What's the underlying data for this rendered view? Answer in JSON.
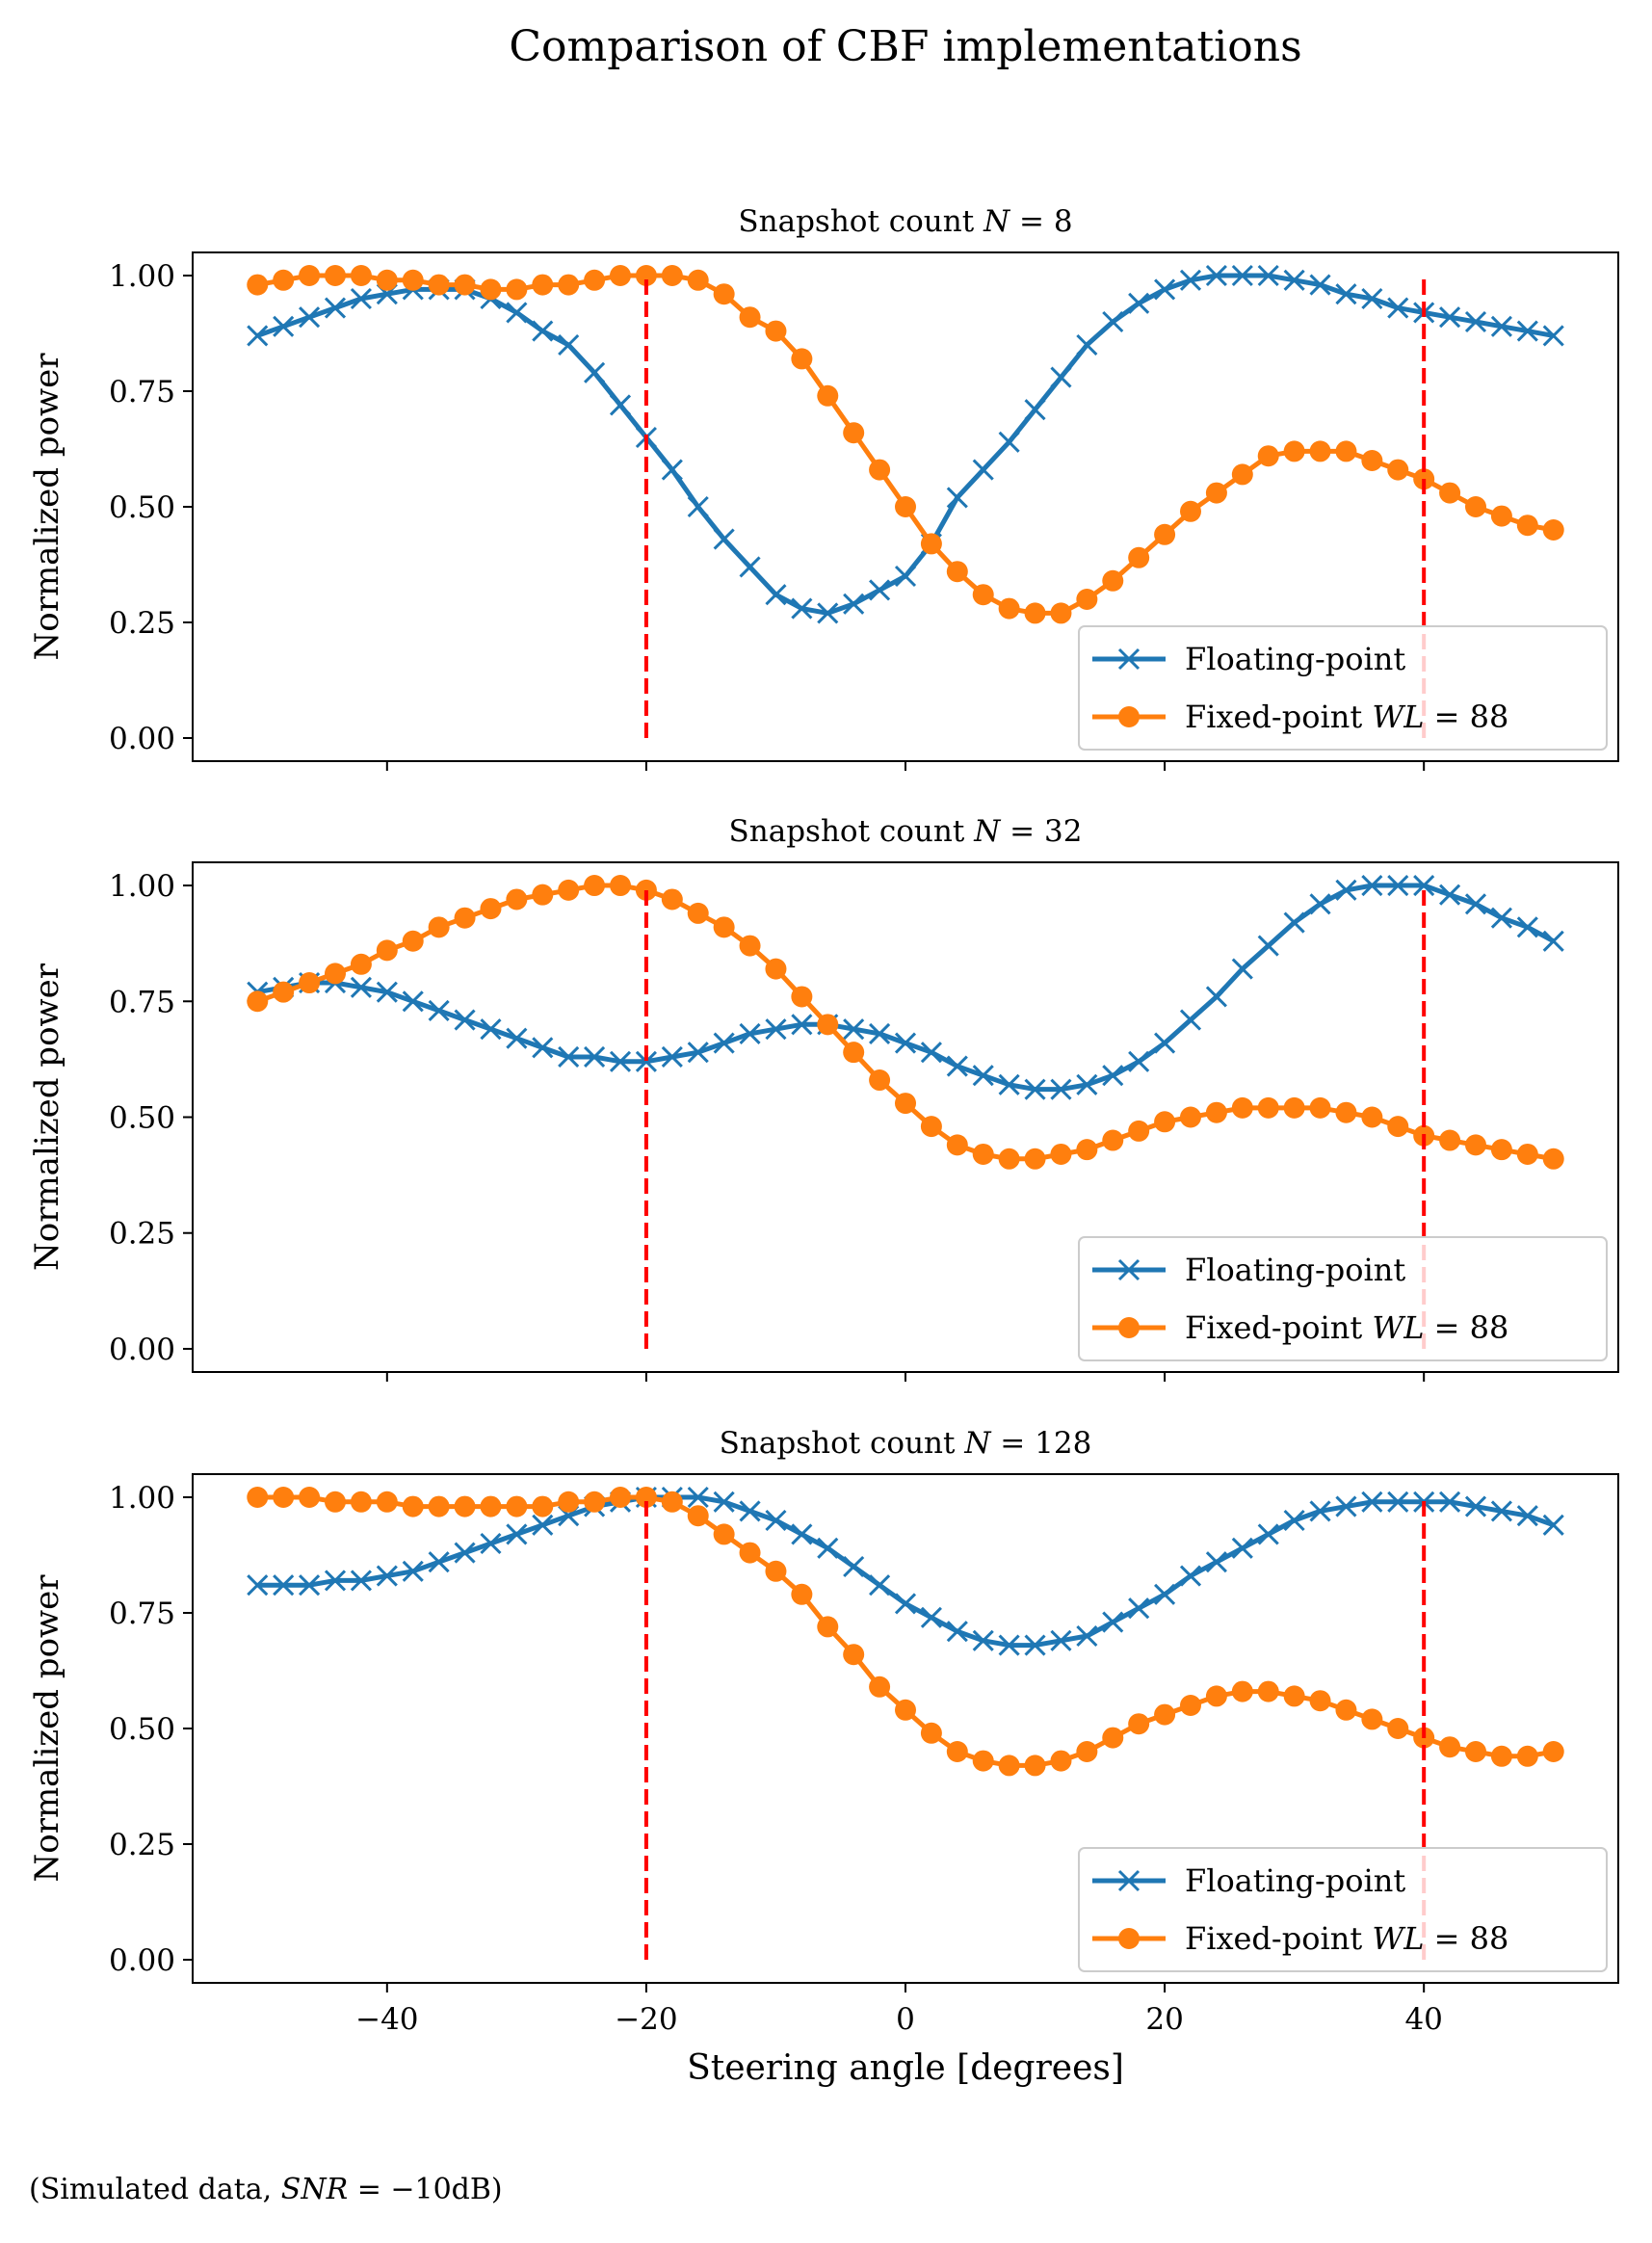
{
  "figure": {
    "title": "Comparison of CBF implementations",
    "footnote": "(Simulated data, SNR = −10dB)"
  },
  "chart_data": [
    {
      "type": "line",
      "title": "Snapshot count N = 8",
      "xlabel": "Steering angle [degrees]",
      "ylabel": "Normalized power",
      "xlim": [
        -55,
        55
      ],
      "ylim": [
        -0.05,
        1.05
      ],
      "xticks": [
        -40,
        -20,
        0,
        20,
        40
      ],
      "xtick_labels": [
        "−40",
        "−20",
        "0",
        "20",
        "40"
      ],
      "yticks": [
        0.0,
        0.25,
        0.5,
        0.75,
        1.0
      ],
      "ytick_labels": [
        "0.00",
        "0.25",
        "0.50",
        "0.75",
        "1.00"
      ],
      "vlines": [
        -20,
        40
      ],
      "vline_color": "#ff0000",
      "legend": "lower right",
      "series": [
        {
          "name": "Floating-point",
          "color": "#1f77b4",
          "marker": "x",
          "x": [
            -50,
            -48,
            -46,
            -44,
            -42,
            -40,
            -38,
            -36,
            -34,
            -32,
            -30,
            -28,
            -26,
            -24,
            -22,
            -20,
            -18,
            -16,
            -14,
            -12,
            -10,
            -8,
            -6,
            -4,
            -2,
            0,
            2,
            4,
            6,
            8,
            10,
            12,
            14,
            16,
            18,
            20,
            22,
            24,
            26,
            28,
            30,
            32,
            34,
            36,
            38,
            40,
            42,
            44,
            46,
            48,
            50
          ],
          "values": [
            0.87,
            0.89,
            0.91,
            0.93,
            0.95,
            0.96,
            0.97,
            0.97,
            0.97,
            0.95,
            0.92,
            0.88,
            0.85,
            0.79,
            0.72,
            0.65,
            0.58,
            0.5,
            0.43,
            0.37,
            0.31,
            0.28,
            0.27,
            0.29,
            0.32,
            0.35,
            0.42,
            0.52,
            0.58,
            0.64,
            0.71,
            0.78,
            0.85,
            0.9,
            0.94,
            0.97,
            0.99,
            1.0,
            1.0,
            1.0,
            0.99,
            0.98,
            0.96,
            0.95,
            0.93,
            0.92,
            0.91,
            0.9,
            0.89,
            0.88,
            0.87
          ]
        },
        {
          "name": "Fixed-point WL = 88",
          "color": "#ff7f0e",
          "marker": "o",
          "x": [
            -50,
            -48,
            -46,
            -44,
            -42,
            -40,
            -38,
            -36,
            -34,
            -32,
            -30,
            -28,
            -26,
            -24,
            -22,
            -20,
            -18,
            -16,
            -14,
            -12,
            -10,
            -8,
            -6,
            -4,
            -2,
            0,
            2,
            4,
            6,
            8,
            10,
            12,
            14,
            16,
            18,
            20,
            22,
            24,
            26,
            28,
            30,
            32,
            34,
            36,
            38,
            40,
            42,
            44,
            46,
            48,
            50
          ],
          "values": [
            0.98,
            0.99,
            1.0,
            1.0,
            1.0,
            0.99,
            0.99,
            0.98,
            0.98,
            0.97,
            0.97,
            0.98,
            0.98,
            0.99,
            1.0,
            1.0,
            1.0,
            0.99,
            0.96,
            0.91,
            0.88,
            0.82,
            0.74,
            0.66,
            0.58,
            0.5,
            0.42,
            0.36,
            0.31,
            0.28,
            0.27,
            0.27,
            0.3,
            0.34,
            0.39,
            0.44,
            0.49,
            0.53,
            0.57,
            0.61,
            0.62,
            0.62,
            0.62,
            0.6,
            0.58,
            0.56,
            0.53,
            0.5,
            0.48,
            0.46,
            0.45
          ]
        }
      ]
    },
    {
      "type": "line",
      "title": "Snapshot count N = 32",
      "xlabel": "Steering angle [degrees]",
      "ylabel": "Normalized power",
      "xlim": [
        -55,
        55
      ],
      "ylim": [
        -0.05,
        1.05
      ],
      "xticks": [
        -40,
        -20,
        0,
        20,
        40
      ],
      "xtick_labels": [
        "−40",
        "−20",
        "0",
        "20",
        "40"
      ],
      "yticks": [
        0.0,
        0.25,
        0.5,
        0.75,
        1.0
      ],
      "ytick_labels": [
        "0.00",
        "0.25",
        "0.50",
        "0.75",
        "1.00"
      ],
      "vlines": [
        -20,
        40
      ],
      "vline_color": "#ff0000",
      "legend": "lower right",
      "series": [
        {
          "name": "Floating-point",
          "color": "#1f77b4",
          "marker": "x",
          "x": [
            -50,
            -48,
            -46,
            -44,
            -42,
            -40,
            -38,
            -36,
            -34,
            -32,
            -30,
            -28,
            -26,
            -24,
            -22,
            -20,
            -18,
            -16,
            -14,
            -12,
            -10,
            -8,
            -6,
            -4,
            -2,
            0,
            2,
            4,
            6,
            8,
            10,
            12,
            14,
            16,
            18,
            20,
            22,
            24,
            26,
            28,
            30,
            32,
            34,
            36,
            38,
            40,
            42,
            44,
            46,
            48,
            50
          ],
          "values": [
            0.77,
            0.78,
            0.79,
            0.79,
            0.78,
            0.77,
            0.75,
            0.73,
            0.71,
            0.69,
            0.67,
            0.65,
            0.63,
            0.63,
            0.62,
            0.62,
            0.63,
            0.64,
            0.66,
            0.68,
            0.69,
            0.7,
            0.7,
            0.69,
            0.68,
            0.66,
            0.64,
            0.61,
            0.59,
            0.57,
            0.56,
            0.56,
            0.57,
            0.59,
            0.62,
            0.66,
            0.71,
            0.76,
            0.82,
            0.87,
            0.92,
            0.96,
            0.99,
            1.0,
            1.0,
            1.0,
            0.98,
            0.96,
            0.93,
            0.91,
            0.88
          ]
        },
        {
          "name": "Fixed-point WL = 88",
          "color": "#ff7f0e",
          "marker": "o",
          "x": [
            -50,
            -48,
            -46,
            -44,
            -42,
            -40,
            -38,
            -36,
            -34,
            -32,
            -30,
            -28,
            -26,
            -24,
            -22,
            -20,
            -18,
            -16,
            -14,
            -12,
            -10,
            -8,
            -6,
            -4,
            -2,
            0,
            2,
            4,
            6,
            8,
            10,
            12,
            14,
            16,
            18,
            20,
            22,
            24,
            26,
            28,
            30,
            32,
            34,
            36,
            38,
            40,
            42,
            44,
            46,
            48,
            50
          ],
          "values": [
            0.75,
            0.77,
            0.79,
            0.81,
            0.83,
            0.86,
            0.88,
            0.91,
            0.93,
            0.95,
            0.97,
            0.98,
            0.99,
            1.0,
            1.0,
            0.99,
            0.97,
            0.94,
            0.91,
            0.87,
            0.82,
            0.76,
            0.7,
            0.64,
            0.58,
            0.53,
            0.48,
            0.44,
            0.42,
            0.41,
            0.41,
            0.42,
            0.43,
            0.45,
            0.47,
            0.49,
            0.5,
            0.51,
            0.52,
            0.52,
            0.52,
            0.52,
            0.51,
            0.5,
            0.48,
            0.46,
            0.45,
            0.44,
            0.43,
            0.42,
            0.41
          ]
        }
      ]
    },
    {
      "type": "line",
      "title": "Snapshot count N = 128",
      "xlabel": "Steering angle [degrees]",
      "ylabel": "Normalized power",
      "xlim": [
        -55,
        55
      ],
      "ylim": [
        -0.05,
        1.05
      ],
      "xticks": [
        -40,
        -20,
        0,
        20,
        40
      ],
      "xtick_labels": [
        "−40",
        "−20",
        "0",
        "20",
        "40"
      ],
      "yticks": [
        0.0,
        0.25,
        0.5,
        0.75,
        1.0
      ],
      "ytick_labels": [
        "0.00",
        "0.25",
        "0.50",
        "0.75",
        "1.00"
      ],
      "vlines": [
        -20,
        40
      ],
      "vline_color": "#ff0000",
      "legend": "lower right",
      "series": [
        {
          "name": "Floating-point",
          "color": "#1f77b4",
          "marker": "x",
          "x": [
            -50,
            -48,
            -46,
            -44,
            -42,
            -40,
            -38,
            -36,
            -34,
            -32,
            -30,
            -28,
            -26,
            -24,
            -22,
            -20,
            -18,
            -16,
            -14,
            -12,
            -10,
            -8,
            -6,
            -4,
            -2,
            0,
            2,
            4,
            6,
            8,
            10,
            12,
            14,
            16,
            18,
            20,
            22,
            24,
            26,
            28,
            30,
            32,
            34,
            36,
            38,
            40,
            42,
            44,
            46,
            48,
            50
          ],
          "values": [
            0.81,
            0.81,
            0.81,
            0.82,
            0.82,
            0.83,
            0.84,
            0.86,
            0.88,
            0.9,
            0.92,
            0.94,
            0.96,
            0.98,
            0.99,
            1.0,
            1.0,
            1.0,
            0.99,
            0.97,
            0.95,
            0.92,
            0.89,
            0.85,
            0.81,
            0.77,
            0.74,
            0.71,
            0.69,
            0.68,
            0.68,
            0.69,
            0.7,
            0.73,
            0.76,
            0.79,
            0.83,
            0.86,
            0.89,
            0.92,
            0.95,
            0.97,
            0.98,
            0.99,
            0.99,
            0.99,
            0.99,
            0.98,
            0.97,
            0.96,
            0.94
          ]
        },
        {
          "name": "Fixed-point WL = 88",
          "color": "#ff7f0e",
          "marker": "o",
          "x": [
            -50,
            -48,
            -46,
            -44,
            -42,
            -40,
            -38,
            -36,
            -34,
            -32,
            -30,
            -28,
            -26,
            -24,
            -22,
            -20,
            -18,
            -16,
            -14,
            -12,
            -10,
            -8,
            -6,
            -4,
            -2,
            0,
            2,
            4,
            6,
            8,
            10,
            12,
            14,
            16,
            18,
            20,
            22,
            24,
            26,
            28,
            30,
            32,
            34,
            36,
            38,
            40,
            42,
            44,
            46,
            48,
            50
          ],
          "values": [
            1.0,
            1.0,
            1.0,
            0.99,
            0.99,
            0.99,
            0.98,
            0.98,
            0.98,
            0.98,
            0.98,
            0.98,
            0.99,
            0.99,
            1.0,
            1.0,
            0.99,
            0.96,
            0.92,
            0.88,
            0.84,
            0.79,
            0.72,
            0.66,
            0.59,
            0.54,
            0.49,
            0.45,
            0.43,
            0.42,
            0.42,
            0.43,
            0.45,
            0.48,
            0.51,
            0.53,
            0.55,
            0.57,
            0.58,
            0.58,
            0.57,
            0.56,
            0.54,
            0.52,
            0.5,
            0.48,
            0.46,
            0.45,
            0.44,
            0.44,
            0.45
          ]
        }
      ]
    }
  ]
}
